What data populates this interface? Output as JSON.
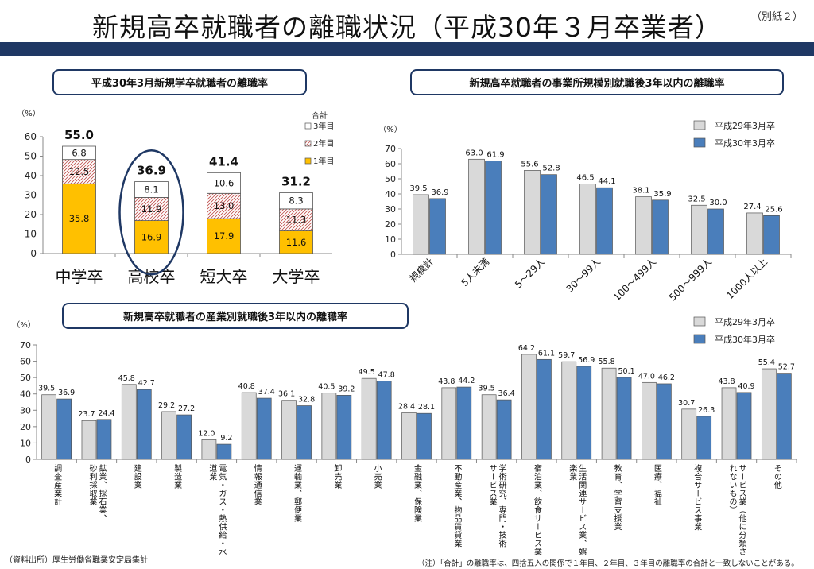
{
  "header": {
    "title": "新規高卒就職者の離職状況（平成30年３月卒業者）",
    "annex": "（別紙２）"
  },
  "colors": {
    "year1": "#ffc000",
    "year2_hatch": "#c0504d",
    "year3": "#ffffff",
    "prev_year": "#d9d9d9",
    "curr_year": "#4a7ebb",
    "navy": "#1f3864"
  },
  "chart_data": [
    {
      "type": "bar",
      "stacked": true,
      "title": "平成30年3月新規学卒就職者の離職率",
      "ylabel": "（%）",
      "ylim": [
        0,
        60
      ],
      "yticks": [
        0,
        10,
        20,
        30,
        40,
        50,
        60
      ],
      "categories": [
        "中学卒",
        "高校卒",
        "短大卒",
        "大学卒"
      ],
      "series": [
        {
          "name": "1年目",
          "values": [
            35.8,
            16.9,
            17.9,
            11.6
          ]
        },
        {
          "name": "2年目",
          "values": [
            12.5,
            11.9,
            13.0,
            11.3
          ]
        },
        {
          "name": "3年目",
          "values": [
            6.8,
            8.1,
            10.6,
            8.3
          ]
        }
      ],
      "totals": [
        "55.0",
        "36.9",
        "41.4",
        "31.2"
      ],
      "legend_title": "合計",
      "highlight": "高校卒",
      "grid": false,
      "legend_position": "right"
    },
    {
      "type": "bar",
      "title": "新規高卒就職者の事業所規模別就職後3年以内の離職率",
      "ylabel": "（%）",
      "ylim": [
        0,
        70
      ],
      "yticks": [
        0,
        10,
        20,
        30,
        40,
        50,
        60,
        70
      ],
      "categories": [
        "規模計",
        "5人未満",
        "5～29人",
        "30～99人",
        "100～499人",
        "500～999人",
        "1000人以上"
      ],
      "series": [
        {
          "name": "平成29年3月卒",
          "values": [
            39.5,
            63.0,
            55.6,
            46.5,
            38.1,
            32.5,
            27.4
          ]
        },
        {
          "name": "平成30年3月卒",
          "values": [
            36.9,
            61.9,
            52.8,
            44.1,
            35.9,
            30.0,
            25.6
          ]
        }
      ],
      "grid": false,
      "legend_position": "top-right"
    },
    {
      "type": "bar",
      "title": "新規高卒就職者の産業別就職後3年以内の離職率",
      "ylabel": "（%）",
      "ylim": [
        0,
        70
      ],
      "yticks": [
        0,
        10,
        20,
        30,
        40,
        50,
        60,
        70
      ],
      "categories": [
        [
          "調査産業計"
        ],
        [
          "鉱業、採石業、",
          "砂利採取業"
        ],
        [
          "建設業"
        ],
        [
          "製造業"
        ],
        [
          "電気・ガス・熱供給・水",
          "道業"
        ],
        [
          "情報通信業"
        ],
        [
          "運輸業、郵便業"
        ],
        [
          "卸売業"
        ],
        [
          "小売業"
        ],
        [
          "金融業、保険業"
        ],
        [
          "不動産業、物品賃貸業"
        ],
        [
          "学術研究、専門・技術",
          "サービス業"
        ],
        [
          "宿泊業、飲食サービス業"
        ],
        [
          "生活関連サービス業、娯",
          "楽業"
        ],
        [
          "教育、学習支援業"
        ],
        [
          "医療、福祉"
        ],
        [
          "複合サービス事業"
        ],
        [
          "サービス業（他に分類さ",
          "れないもの）"
        ],
        [
          "その他"
        ]
      ],
      "series": [
        {
          "name": "平成29年3月卒",
          "values": [
            39.5,
            23.7,
            45.8,
            29.2,
            12.0,
            40.8,
            36.1,
            40.5,
            49.5,
            28.4,
            43.8,
            39.5,
            64.2,
            59.7,
            55.8,
            47.0,
            30.7,
            43.8,
            55.4
          ]
        },
        {
          "name": "平成30年3月卒",
          "values": [
            36.9,
            24.4,
            42.7,
            27.2,
            9.2,
            37.4,
            32.8,
            39.2,
            47.8,
            28.1,
            44.2,
            36.4,
            61.1,
            56.9,
            50.1,
            46.2,
            26.3,
            40.9,
            52.7
          ]
        }
      ],
      "grid": false,
      "legend_position": "top-right"
    }
  ],
  "source": "（資料出所）厚生労働省職業安定局集計",
  "footnote": "（注）「合計」の離職率は、四捨五入の関係で１年目、２年目、３年目の離職率の合計と一致しないことがある。"
}
